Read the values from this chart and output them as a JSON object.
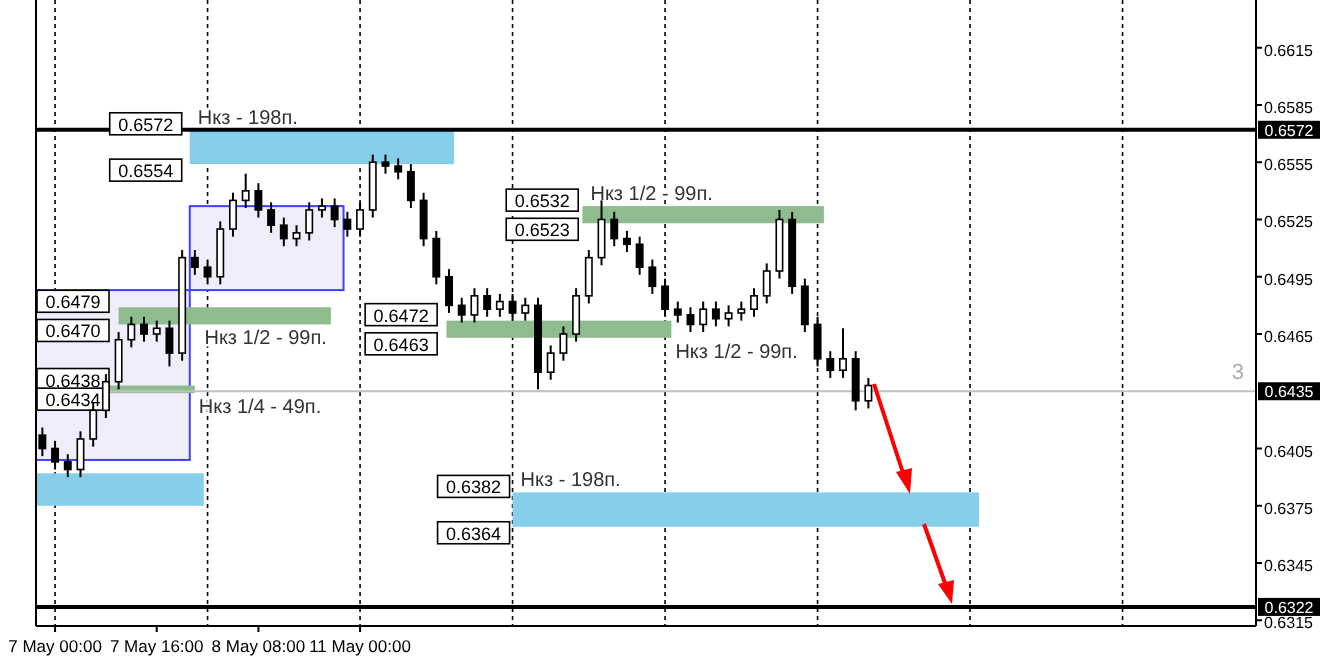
{
  "chart_data": {
    "type": "candlestick",
    "color": "#000000",
    "grid": "x",
    "categories": [
      null,
      "7 May 00:00",
      null,
      null,
      null,
      null,
      null,
      null,
      null,
      "7 May 16:00",
      null,
      null,
      null,
      null,
      null,
      null,
      null,
      "8 May 08:00",
      null,
      null,
      null,
      null,
      null,
      null,
      null,
      "11 May 00:00",
      null,
      null,
      null,
      null,
      null,
      null,
      null,
      null,
      null,
      null,
      null,
      null,
      null,
      null,
      null,
      null,
      null,
      null,
      null,
      null,
      null,
      null,
      null,
      null,
      null,
      null,
      null,
      null,
      null,
      null,
      null,
      null,
      null,
      null,
      null,
      null,
      null,
      null,
      null,
      null,
      null,
      null,
      null,
      null,
      null,
      null,
      null,
      null,
      null,
      null,
      null,
      null,
      null,
      null,
      null,
      null,
      null,
      null,
      null,
      null,
      null,
      null,
      null,
      null,
      null,
      null,
      null,
      null,
      null,
      null
    ],
    "ohlc": [
      [
        0.6412,
        0.6416,
        0.6401,
        0.6405
      ],
      [
        0.6405,
        0.6409,
        0.6394,
        0.6398
      ],
      [
        0.6398,
        0.6402,
        0.639,
        0.6394
      ],
      [
        0.6394,
        0.6414,
        0.639,
        0.641
      ],
      [
        0.641,
        0.6429,
        0.6406,
        0.6425
      ],
      [
        0.6425,
        0.6444,
        0.6421,
        0.644
      ],
      [
        0.644,
        0.6466,
        0.6436,
        0.6462
      ],
      [
        0.6462,
        0.6474,
        0.6458,
        0.647
      ],
      [
        0.647,
        0.6474,
        0.6461,
        0.6465
      ],
      [
        0.6465,
        0.6472,
        0.6461,
        0.6468
      ],
      [
        0.6468,
        0.6472,
        0.6448,
        0.6455
      ],
      [
        0.6455,
        0.6509,
        0.6451,
        0.6505
      ],
      [
        0.6505,
        0.6509,
        0.6496,
        0.65
      ],
      [
        0.65,
        0.6504,
        0.6491,
        0.6495
      ],
      [
        0.6495,
        0.6524,
        0.6491,
        0.652
      ],
      [
        0.652,
        0.6539,
        0.6516,
        0.6535
      ],
      [
        0.6535,
        0.6549,
        0.6531,
        0.654
      ],
      [
        0.654,
        0.6544,
        0.6526,
        0.653
      ],
      [
        0.653,
        0.6534,
        0.6518,
        0.6522
      ],
      [
        0.6522,
        0.6526,
        0.6511,
        0.6515
      ],
      [
        0.6515,
        0.6522,
        0.6511,
        0.6518
      ],
      [
        0.6518,
        0.6534,
        0.6514,
        0.653
      ],
      [
        0.653,
        0.6536,
        0.6526,
        0.6532
      ],
      [
        0.6532,
        0.6536,
        0.6521,
        0.6525
      ],
      [
        0.6525,
        0.6529,
        0.6516,
        0.652
      ],
      [
        0.652,
        0.6534,
        0.6516,
        0.653
      ],
      [
        0.653,
        0.6559,
        0.6526,
        0.6555
      ],
      [
        0.6555,
        0.6559,
        0.6549,
        0.6553
      ],
      [
        0.6553,
        0.6557,
        0.6546,
        0.655
      ],
      [
        0.655,
        0.6554,
        0.6531,
        0.6535
      ],
      [
        0.6535,
        0.6539,
        0.6511,
        0.6515
      ],
      [
        0.6515,
        0.6519,
        0.6491,
        0.6495
      ],
      [
        0.6495,
        0.6499,
        0.6476,
        0.648
      ],
      [
        0.648,
        0.6484,
        0.6471,
        0.6475
      ],
      [
        0.6475,
        0.6489,
        0.6471,
        0.6485
      ],
      [
        0.6485,
        0.6489,
        0.6474,
        0.6478
      ],
      [
        0.6478,
        0.6486,
        0.6474,
        0.6482
      ],
      [
        0.6482,
        0.6486,
        0.6472,
        0.6476
      ],
      [
        0.6476,
        0.6484,
        0.6472,
        0.648
      ],
      [
        0.648,
        0.6484,
        0.6436,
        0.6445
      ],
      [
        0.6445,
        0.6459,
        0.6441,
        0.6455
      ],
      [
        0.6455,
        0.6469,
        0.6451,
        0.6465
      ],
      [
        0.6465,
        0.6489,
        0.6461,
        0.6485
      ],
      [
        0.6485,
        0.6509,
        0.6481,
        0.6505
      ],
      [
        0.6505,
        0.6535,
        0.6501,
        0.6525
      ],
      [
        0.6525,
        0.6529,
        0.6511,
        0.6515
      ],
      [
        0.6515,
        0.6519,
        0.6508,
        0.6512
      ],
      [
        0.6512,
        0.6516,
        0.6496,
        0.65
      ],
      [
        0.65,
        0.6504,
        0.6486,
        0.649
      ],
      [
        0.649,
        0.6494,
        0.6474,
        0.6478
      ],
      [
        0.6478,
        0.6482,
        0.6471,
        0.6475
      ],
      [
        0.6475,
        0.6479,
        0.6466,
        0.647
      ],
      [
        0.647,
        0.6482,
        0.6466,
        0.6478
      ],
      [
        0.6478,
        0.6482,
        0.6469,
        0.6473
      ],
      [
        0.6473,
        0.648,
        0.6469,
        0.6476
      ],
      [
        0.6476,
        0.6482,
        0.6472,
        0.6478
      ],
      [
        0.6478,
        0.6489,
        0.6474,
        0.6485
      ],
      [
        0.6485,
        0.6502,
        0.6481,
        0.6498
      ],
      [
        0.6498,
        0.653,
        0.6494,
        0.6525
      ],
      [
        0.6525,
        0.6529,
        0.6486,
        0.649
      ],
      [
        0.649,
        0.6494,
        0.6466,
        0.647
      ],
      [
        0.647,
        0.6474,
        0.6448,
        0.6452
      ],
      [
        0.6452,
        0.6456,
        0.6442,
        0.6446
      ],
      [
        0.6446,
        0.6468,
        0.6442,
        0.6452
      ],
      [
        0.6452,
        0.6456,
        0.6425,
        0.643
      ],
      [
        0.643,
        0.6442,
        0.6426,
        0.6438
      ],
      null,
      null,
      null,
      null,
      null,
      null,
      null,
      null,
      null,
      null,
      null,
      null,
      null,
      null,
      null,
      null,
      null,
      null,
      null,
      null,
      null,
      null,
      null,
      null,
      null,
      null,
      null,
      null,
      null,
      null
    ],
    "ylim": [
      0.6312,
      0.664
    ],
    "yticks": [
      0.6315,
      0.6345,
      0.6375,
      0.6405,
      0.6465,
      0.6495,
      0.6525,
      0.6555,
      0.6585,
      0.6615
    ],
    "ref_lines": [
      {
        "axis": "y",
        "value": 0.6572,
        "label": "0.6572",
        "color": "#000000",
        "line_style": "solid"
      },
      {
        "axis": "y",
        "value": 0.6435,
        "label": "0.6435",
        "color": "#c0c0c0",
        "line_style": "solid"
      },
      {
        "axis": "y",
        "value": 0.6322,
        "label": "0.6322",
        "color": "#000000",
        "line_style": "solid"
      }
    ],
    "bands": [
      {
        "axis": "y",
        "from": 0.6399,
        "to": 0.6488,
        "color": "#eeeefb"
      },
      {
        "axis": "y",
        "from": 0.6488,
        "to": 0.6532,
        "color": "#eeeefb"
      },
      {
        "axis": "y",
        "from": 0.6375,
        "to": 0.6392,
        "color": "#87ceeb"
      },
      {
        "axis": "y",
        "from": 0.6554,
        "to": 0.6572,
        "color": "#87ceeb",
        "label": "Нкз - 198п."
      },
      {
        "axis": "y",
        "from": 0.647,
        "to": 0.6479,
        "color": "#8fbc8f",
        "label": "Нкз 1/2 - 99п."
      },
      {
        "axis": "y",
        "from": 0.6434,
        "to": 0.6438,
        "color": "#8fbc8f",
        "label": "Нкз 1/4 - 49п."
      },
      {
        "axis": "y",
        "from": 0.6463,
        "to": 0.6472,
        "color": "#8fbc8f",
        "label": "Нкз 1/2 - 99п."
      },
      {
        "axis": "y",
        "from": 0.6523,
        "to": 0.6532,
        "color": "#8fbc8f",
        "label": "Нкз 1/2 - 99п."
      },
      {
        "axis": "y",
        "from": 0.6364,
        "to": 0.6382,
        "color": "#87ceeb",
        "label": "Нкз - 198п."
      }
    ],
    "annotations": [
      "3",
      "0.6572",
      "0.6554",
      "0.6479",
      "0.6470",
      "0.6438",
      "0.6434",
      "0.6472",
      "0.6463",
      "0.6532",
      "0.6523",
      "0.6382",
      "0.6364"
    ]
  }
}
